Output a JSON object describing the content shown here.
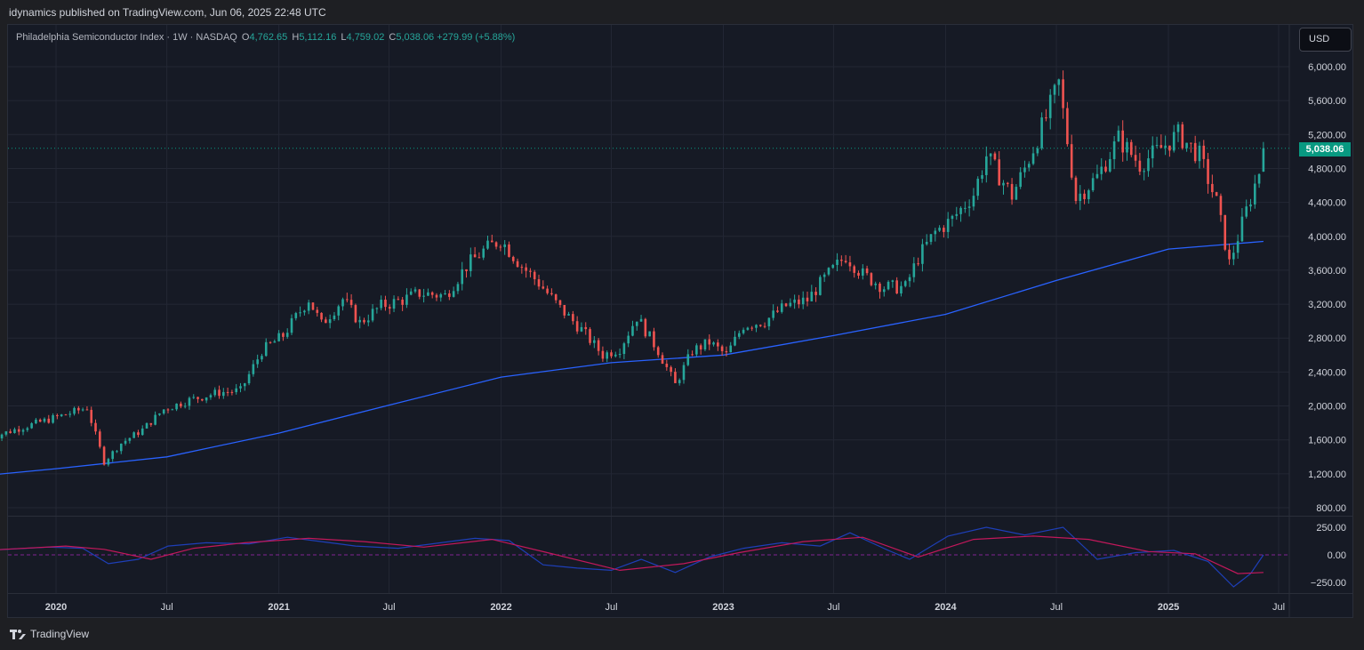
{
  "header": {
    "publish_line": "idynamics published on TradingView.com, Jun 06, 2025 22:48 UTC"
  },
  "legend": {
    "symbol": "Philadelphia Semiconductor Index · 1W · NASDAQ",
    "open_key": "O",
    "open": "4,762.65",
    "high_key": "H",
    "high": "5,112.16",
    "low_key": "L",
    "low": "4,759.02",
    "close_key": "C",
    "close": "5,038.06",
    "change": "+279.99 (+5.88%)"
  },
  "currency": "USD",
  "last_price_label": "5,038.06",
  "footer": {
    "brand": "TradingView"
  },
  "colors": {
    "up": "#26a69a",
    "down": "#ef5350",
    "ma": "#2962ff",
    "osc_signal": "#c2185b",
    "background": "#161a25",
    "last_price_tag": "#089981"
  },
  "chart_data": [
    {
      "type": "candlestick",
      "y_ticks": [
        "6,000.00",
        "5,600.00",
        "5,200.00",
        "4,800.00",
        "4,400.00",
        "4,000.00",
        "3,600.00",
        "3,200.00",
        "2,800.00",
        "2,400.00",
        "2,000.00",
        "1,600.00",
        "1,200.00",
        "800.00"
      ],
      "y_tick_values": [
        6000,
        5600,
        5200,
        4800,
        4400,
        4000,
        3600,
        3200,
        2800,
        2400,
        2000,
        1600,
        1200,
        800
      ],
      "ylim": [
        620,
        6300
      ],
      "x_ticks": [
        "2020",
        "Jul",
        "2021",
        "Jul",
        "2022",
        "Jul",
        "2023",
        "Jul",
        "2024",
        "Jul",
        "2025",
        "Jul"
      ],
      "x_tick_dates": [
        "2020-01-01",
        "2020-07-01",
        "2021-01-01",
        "2021-07-01",
        "2022-01-01",
        "2022-07-01",
        "2023-01-01",
        "2023-07-01",
        "2024-01-01",
        "2024-07-01",
        "2025-01-01",
        "2025-07-01"
      ],
      "last_close": 5038.06,
      "close_path": [
        [
          "2019-09-13",
          1620
        ],
        [
          "2019-10-25",
          1720
        ],
        [
          "2019-12-06",
          1810
        ],
        [
          "2020-01-17",
          1900
        ],
        [
          "2020-02-21",
          1980
        ],
        [
          "2020-03-20",
          1340
        ],
        [
          "2020-04-17",
          1560
        ],
        [
          "2020-05-22",
          1720
        ],
        [
          "2020-06-26",
          1960
        ],
        [
          "2020-08-07",
          2070
        ],
        [
          "2020-09-25",
          2160
        ],
        [
          "2020-10-30",
          2180
        ],
        [
          "2020-12-04",
          2650
        ],
        [
          "2021-01-08",
          2830
        ],
        [
          "2021-02-19",
          3260
        ],
        [
          "2021-03-12",
          2960
        ],
        [
          "2021-04-16",
          3260
        ],
        [
          "2021-05-14",
          2980
        ],
        [
          "2021-06-18",
          3180
        ],
        [
          "2021-07-23",
          3250
        ],
        [
          "2021-08-20",
          3330
        ],
        [
          "2021-10-01",
          3300
        ],
        [
          "2021-11-05",
          3650
        ],
        [
          "2021-12-03",
          3830
        ],
        [
          "2021-12-31",
          3960
        ],
        [
          "2022-02-04",
          3650
        ],
        [
          "2022-03-04",
          3450
        ],
        [
          "2022-04-08",
          3150
        ],
        [
          "2022-05-13",
          2900
        ],
        [
          "2022-06-17",
          2600
        ],
        [
          "2022-07-15",
          2680
        ],
        [
          "2022-08-12",
          3050
        ],
        [
          "2022-09-16",
          2650
        ],
        [
          "2022-10-14",
          2250
        ],
        [
          "2022-11-11",
          2650
        ],
        [
          "2022-12-09",
          2750
        ],
        [
          "2023-01-06",
          2600
        ],
        [
          "2023-02-03",
          2950
        ],
        [
          "2023-03-10",
          3000
        ],
        [
          "2023-04-14",
          3180
        ],
        [
          "2023-05-19",
          3250
        ],
        [
          "2023-06-16",
          3500
        ],
        [
          "2023-07-21",
          3770
        ],
        [
          "2023-08-18",
          3550
        ],
        [
          "2023-09-22",
          3400
        ],
        [
          "2023-10-27",
          3400
        ],
        [
          "2023-11-17",
          3750
        ],
        [
          "2023-12-15",
          4050
        ],
        [
          "2024-01-12",
          4200
        ],
        [
          "2024-02-16",
          4500
        ],
        [
          "2024-03-08",
          4950
        ],
        [
          "2024-04-19",
          4480
        ],
        [
          "2024-05-10",
          4800
        ],
        [
          "2024-06-14",
          5400
        ],
        [
          "2024-07-05",
          5800
        ],
        [
          "2024-08-02",
          4450
        ],
        [
          "2024-09-06",
          4700
        ],
        [
          "2024-10-11",
          5150
        ],
        [
          "2024-11-15",
          4850
        ],
        [
          "2024-12-13",
          5000
        ],
        [
          "2025-01-17",
          5200
        ],
        [
          "2025-02-21",
          4950
        ],
        [
          "2025-03-21",
          4400
        ],
        [
          "2025-04-11",
          3680
        ],
        [
          "2025-05-09",
          4300
        ],
        [
          "2025-05-30",
          4765
        ],
        [
          "2025-06-06",
          5038
        ]
      ],
      "moving_average": [
        [
          "2019-09-06",
          1180
        ],
        [
          "2020-01-01",
          1260
        ],
        [
          "2020-07-01",
          1400
        ],
        [
          "2021-01-01",
          1680
        ],
        [
          "2021-07-01",
          2010
        ],
        [
          "2022-01-01",
          2340
        ],
        [
          "2022-07-01",
          2510
        ],
        [
          "2023-01-01",
          2600
        ],
        [
          "2023-07-01",
          2830
        ],
        [
          "2024-01-01",
          3080
        ],
        [
          "2024-07-01",
          3480
        ],
        [
          "2025-01-01",
          3850
        ],
        [
          "2025-06-06",
          3940
        ]
      ]
    },
    {
      "type": "line",
      "y_ticks": [
        "250.00",
        "0.00",
        "−250.00"
      ],
      "y_tick_values": [
        250,
        0,
        -250
      ],
      "ylim": [
        -300,
        300
      ],
      "series": [
        {
          "color": "#1e3fb8",
          "points": [
            [
              "2019-09-06",
              40
            ],
            [
              "2019-12-20",
              70
            ],
            [
              "2020-02-14",
              60
            ],
            [
              "2020-03-27",
              -80
            ],
            [
              "2020-05-15",
              -40
            ],
            [
              "2020-07-03",
              80
            ],
            [
              "2020-09-04",
              110
            ],
            [
              "2020-11-13",
              100
            ],
            [
              "2021-01-15",
              160
            ],
            [
              "2021-03-12",
              120
            ],
            [
              "2021-05-07",
              80
            ],
            [
              "2021-07-16",
              60
            ],
            [
              "2021-09-10",
              100
            ],
            [
              "2021-11-19",
              150
            ],
            [
              "2022-01-14",
              130
            ],
            [
              "2022-03-11",
              -90
            ],
            [
              "2022-05-06",
              -120
            ],
            [
              "2022-07-01",
              -140
            ],
            [
              "2022-08-19",
              -40
            ],
            [
              "2022-10-14",
              -160
            ],
            [
              "2022-12-09",
              -20
            ],
            [
              "2023-02-03",
              60
            ],
            [
              "2023-04-07",
              110
            ],
            [
              "2023-06-09",
              80
            ],
            [
              "2023-07-28",
              200
            ],
            [
              "2023-09-29",
              40
            ],
            [
              "2023-11-03",
              -40
            ],
            [
              "2024-01-05",
              170
            ],
            [
              "2024-03-08",
              250
            ],
            [
              "2024-05-10",
              180
            ],
            [
              "2024-07-12",
              250
            ],
            [
              "2024-09-06",
              -40
            ],
            [
              "2024-11-08",
              20
            ],
            [
              "2025-01-10",
              40
            ],
            [
              "2025-03-07",
              -60
            ],
            [
              "2025-04-18",
              -290
            ],
            [
              "2025-05-16",
              -170
            ],
            [
              "2025-06-06",
              0
            ]
          ]
        },
        {
          "color": "#c2185b",
          "points": [
            [
              "2019-09-06",
              40
            ],
            [
              "2020-01-17",
              80
            ],
            [
              "2020-03-20",
              50
            ],
            [
              "2020-06-05",
              -40
            ],
            [
              "2020-08-14",
              60
            ],
            [
              "2020-11-06",
              110
            ],
            [
              "2021-02-19",
              150
            ],
            [
              "2021-05-21",
              120
            ],
            [
              "2021-08-27",
              70
            ],
            [
              "2021-12-17",
              140
            ],
            [
              "2022-03-18",
              20
            ],
            [
              "2022-07-15",
              -140
            ],
            [
              "2022-10-28",
              -80
            ],
            [
              "2023-01-27",
              20
            ],
            [
              "2023-05-12",
              120
            ],
            [
              "2023-08-18",
              160
            ],
            [
              "2023-11-17",
              -20
            ],
            [
              "2024-02-16",
              140
            ],
            [
              "2024-05-24",
              170
            ],
            [
              "2024-08-23",
              140
            ],
            [
              "2024-11-29",
              30
            ],
            [
              "2025-02-14",
              10
            ],
            [
              "2025-04-25",
              -170
            ],
            [
              "2025-06-06",
              -160
            ]
          ]
        }
      ]
    }
  ]
}
